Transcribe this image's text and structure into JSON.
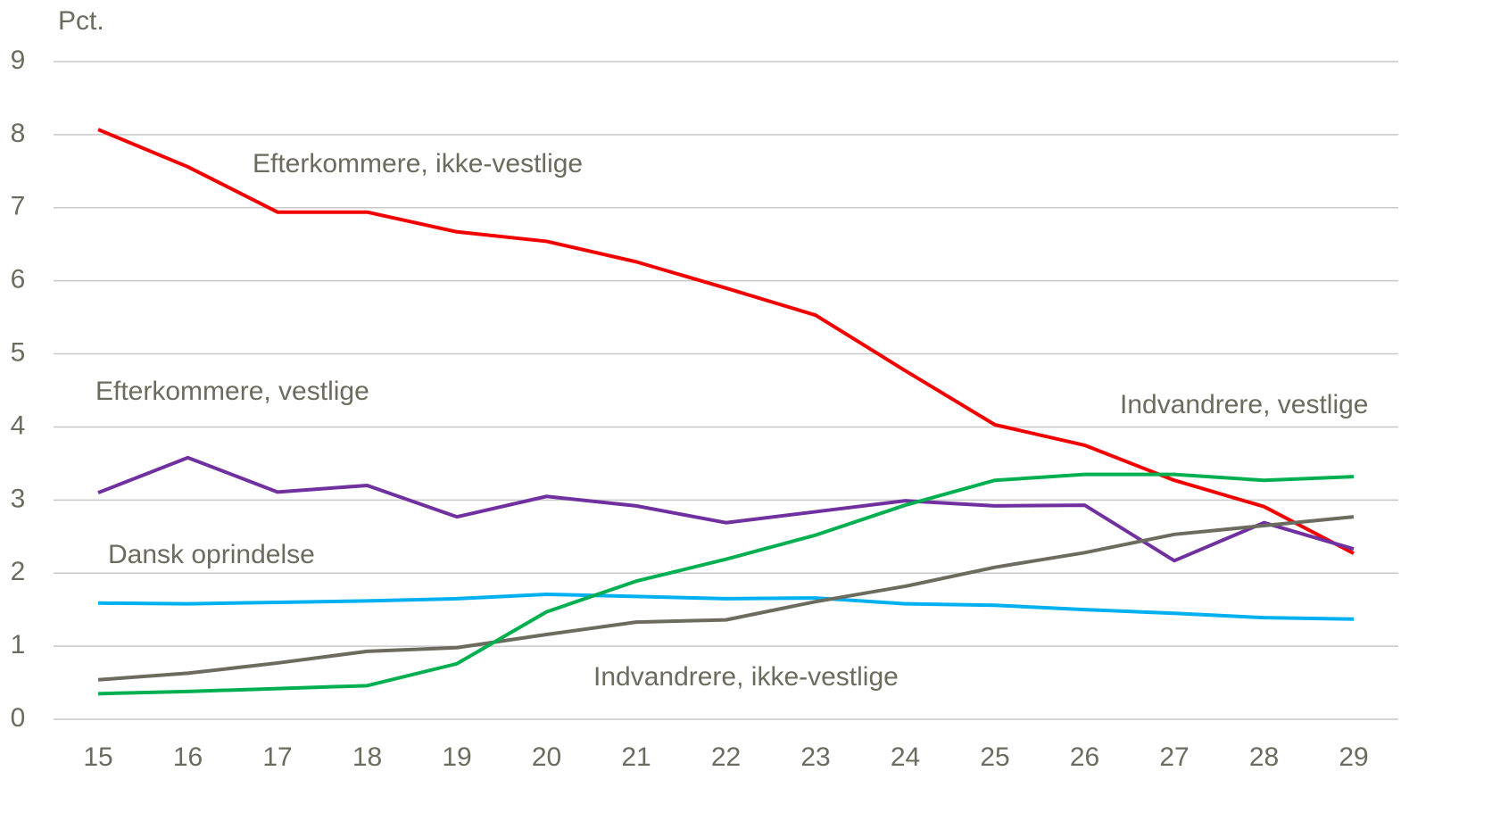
{
  "chart_data": {
    "type": "line",
    "y_axis_label": "Pct.",
    "x": [
      15,
      16,
      17,
      18,
      19,
      20,
      21,
      22,
      23,
      24,
      25,
      26,
      27,
      28,
      29
    ],
    "xlim": [
      15,
      29
    ],
    "xticks": [
      15,
      16,
      17,
      18,
      19,
      20,
      21,
      22,
      23,
      24,
      25,
      26,
      27,
      28,
      29
    ],
    "ylim": [
      0,
      9
    ],
    "yticks": [
      0,
      1,
      2,
      3,
      4,
      5,
      6,
      7,
      8,
      9
    ],
    "grid": true,
    "series": [
      {
        "name": "Efterkommere, ikke-vestlige",
        "color": "#f20000",
        "values": [
          8.07,
          7.56,
          6.94,
          6.94,
          6.67,
          6.54,
          6.26,
          5.9,
          5.53,
          4.77,
          4.03,
          3.75,
          3.27,
          2.91,
          2.27
        ]
      },
      {
        "name": "Efterkommere, vestlige",
        "color": "#7030a0",
        "values": [
          3.1,
          3.58,
          3.11,
          3.2,
          2.77,
          3.05,
          2.92,
          2.69,
          2.84,
          2.99,
          2.92,
          2.93,
          2.17,
          2.69,
          2.33
        ]
      },
      {
        "name": "Dansk oprindelse",
        "color": "#00b0f0",
        "values": [
          1.59,
          1.58,
          1.6,
          1.62,
          1.65,
          1.71,
          1.68,
          1.65,
          1.66,
          1.58,
          1.56,
          1.5,
          1.45,
          1.39,
          1.37
        ]
      },
      {
        "name": "Indvandrere, ikke-vestlige",
        "color": "#6b6b5e",
        "values": [
          0.54,
          0.63,
          0.77,
          0.93,
          0.98,
          1.16,
          1.33,
          1.36,
          1.61,
          1.82,
          2.08,
          2.28,
          2.53,
          2.65,
          2.77
        ]
      },
      {
        "name": "Indvandrere, vestlige",
        "color": "#00b050",
        "values": [
          0.35,
          0.38,
          0.42,
          0.46,
          0.76,
          1.47,
          1.89,
          2.19,
          2.52,
          2.93,
          3.27,
          3.35,
          3.35,
          3.27,
          3.32
        ]
      }
    ]
  }
}
